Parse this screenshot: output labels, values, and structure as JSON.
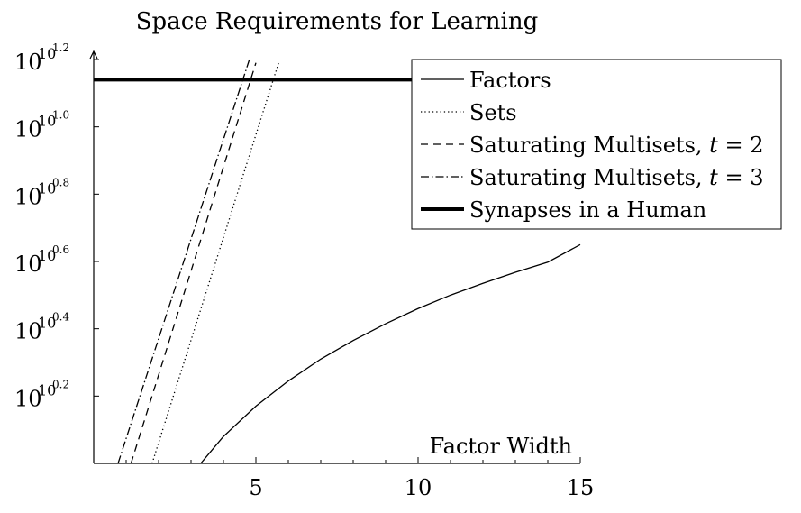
{
  "chart_data": {
    "type": "line",
    "title": "Space Requirements for Learning",
    "xlabel": "Factor Width",
    "ylabel": "",
    "xlim": [
      0,
      15
    ],
    "ylim": [
      0,
      1.2
    ],
    "y_axis_note": "y is the exponent e in 10^(10^e)",
    "x_ticks": [
      {
        "value": 5,
        "label": "5"
      },
      {
        "value": 10,
        "label": "10"
      },
      {
        "value": 15,
        "label": "15"
      }
    ],
    "y_ticks": [
      {
        "value": 0.2,
        "base": "10",
        "exp1": "10",
        "exp2": "0.2"
      },
      {
        "value": 0.4,
        "base": "10",
        "exp1": "10",
        "exp2": "0.4"
      },
      {
        "value": 0.6,
        "base": "10",
        "exp1": "10",
        "exp2": "0.6"
      },
      {
        "value": 0.8,
        "base": "10",
        "exp1": "10",
        "exp2": "0.8"
      },
      {
        "value": 1.0,
        "base": "10",
        "exp1": "10",
        "exp2": "1.0"
      },
      {
        "value": 1.2,
        "base": "10",
        "exp1": "10",
        "exp2": "1.2"
      }
    ],
    "legend_position": "top-right",
    "series": [
      {
        "name": "Factors",
        "style": "solid",
        "x": [
          3.3,
          4,
          5,
          6,
          7,
          8,
          9,
          10,
          11,
          12,
          13,
          14,
          15
        ],
        "y": [
          0.0,
          0.08,
          0.17,
          0.245,
          0.31,
          0.365,
          0.415,
          0.46,
          0.5,
          0.535,
          0.568,
          0.598,
          0.65
        ]
      },
      {
        "name": "Sets",
        "style": "dotted",
        "x": [
          1.8,
          5.7
        ],
        "y": [
          0.0,
          1.19
        ]
      },
      {
        "name": "Saturating Multisets, ",
        "name_var": "t",
        "name_eq": " = 2",
        "style": "dashed",
        "x": [
          1.15,
          5.0
        ],
        "y": [
          0.0,
          1.19
        ]
      },
      {
        "name": "Saturating Multisets, ",
        "name_var": "t",
        "name_eq": " = 3",
        "style": "dashdot",
        "x": [
          0.75,
          4.8
        ],
        "y": [
          0.0,
          1.2
        ]
      },
      {
        "name": "Synapses in a Human",
        "style": "thick",
        "x": [
          0,
          15
        ],
        "y": [
          1.14,
          1.14
        ]
      }
    ]
  }
}
